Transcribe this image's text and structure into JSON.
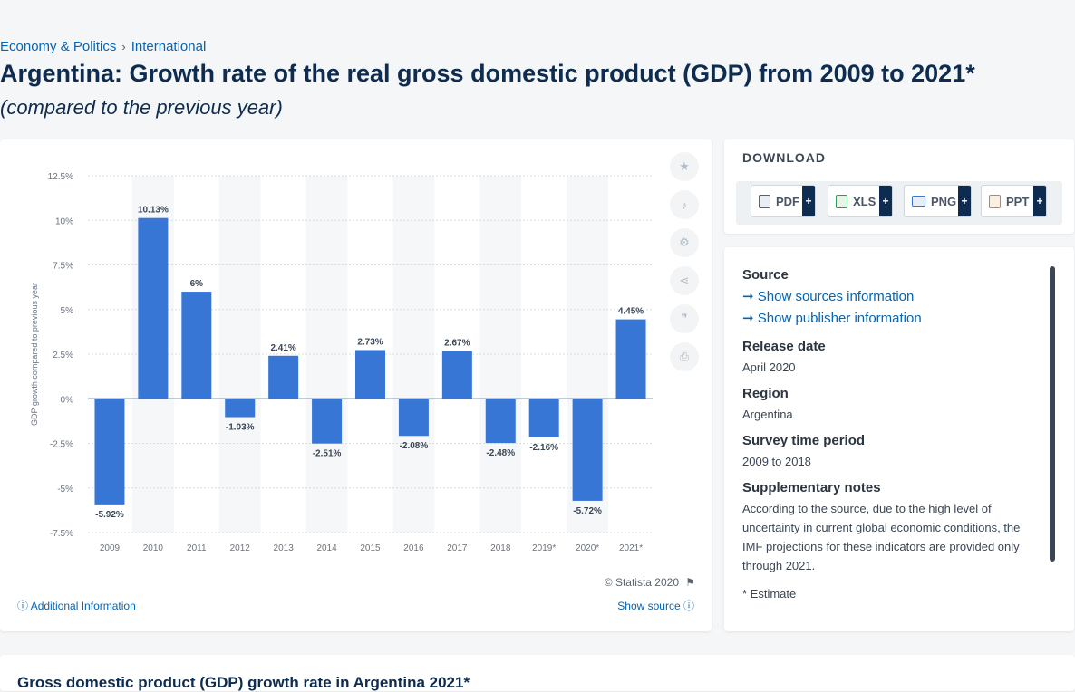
{
  "breadcrumb": {
    "item1": "Economy & Politics",
    "sep": "›",
    "item2": "International"
  },
  "page": {
    "title": "Argentina: Growth rate of the real gross domestic product (GDP) from 2009 to 2021*",
    "subtitle": "(compared to the previous year)"
  },
  "chart_footer": {
    "credit": "© Statista 2020",
    "additional_info": "Additional Information",
    "show_source": "Show source"
  },
  "download": {
    "label": "DOWNLOAD",
    "buttons": [
      "PDF",
      "XLS",
      "PNG",
      "PPT"
    ],
    "plus": "+"
  },
  "info": {
    "source_heading": "Source",
    "show_sources": "Show sources information",
    "show_publisher": "Show publisher information",
    "release_heading": "Release date",
    "release_value": "April 2020",
    "region_heading": "Region",
    "region_value": "Argentina",
    "survey_heading": "Survey time period",
    "survey_value": "2009 to 2018",
    "notes_heading": "Supplementary notes",
    "notes_value": "According to the source, due to the high level of uncertainty in current global economic conditions, the IMF projections for these indicators are provided only through 2021.",
    "estimate_note": "* Estimate"
  },
  "bottom": {
    "title": "Gross domestic product (GDP) growth rate in Argentina 2021*"
  },
  "colors": {
    "bar": "#3876d6",
    "accent": "#0664b4"
  },
  "chart_data": {
    "type": "bar",
    "categories": [
      "2009",
      "2010",
      "2011",
      "2012",
      "2013",
      "2014",
      "2015",
      "2016",
      "2017",
      "2018",
      "2019*",
      "2020*",
      "2021*"
    ],
    "values": [
      -5.92,
      10.13,
      6,
      -1.03,
      2.41,
      -2.51,
      2.73,
      -2.08,
      2.67,
      -2.48,
      -2.16,
      -5.72,
      4.45
    ],
    "data_labels": [
      "-5.92%",
      "10.13%",
      "6%",
      "-1.03%",
      "2.41%",
      "-2.51%",
      "2.73%",
      "-2.08%",
      "2.67%",
      "-2.48%",
      "-2.16%",
      "-5.72%",
      "4.45%"
    ],
    "ylabel": "GDP growth compared to previous year",
    "ylim": [
      -7.5,
      12.5
    ],
    "yticks": [
      12.5,
      10,
      7.5,
      5,
      2.5,
      0,
      -2.5,
      -5,
      -7.5
    ],
    "ytick_labels": [
      "12.5%",
      "10%",
      "7.5%",
      "5%",
      "2.5%",
      "0%",
      "-2.5%",
      "-5%",
      "-7.5%"
    ],
    "grid": true
  }
}
